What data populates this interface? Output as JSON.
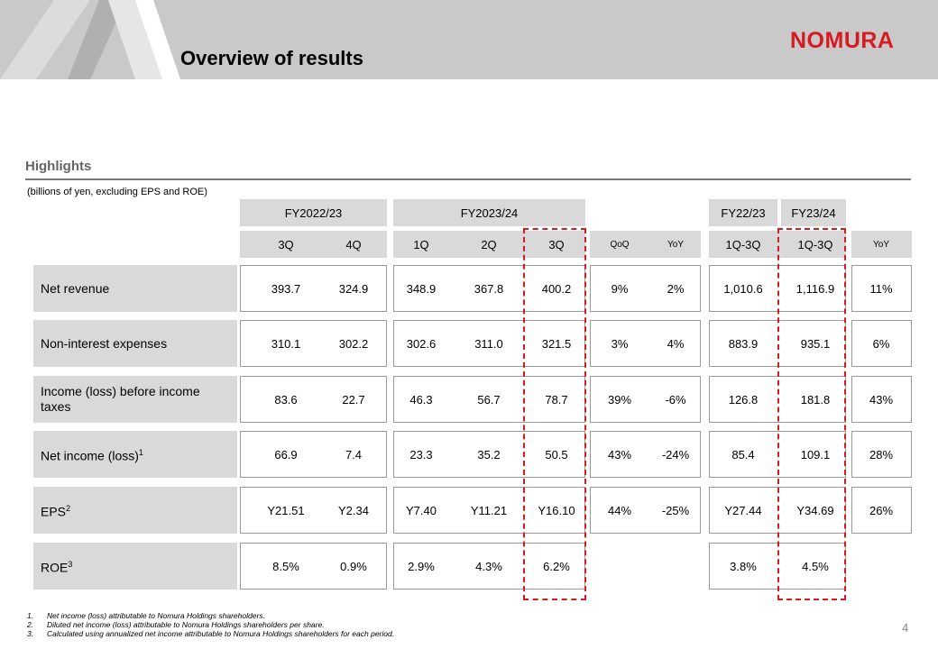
{
  "header": {
    "title": "Overview of results",
    "logo": "NOMURA"
  },
  "section_title": "Highlights",
  "unit_note": "(billions of yen, excluding EPS and ROE)",
  "table": {
    "group_headers": [
      "FY2022/23",
      "FY2023/24",
      "FY22/23",
      "FY23/24"
    ],
    "columns": [
      "3Q",
      "4Q",
      "1Q",
      "2Q",
      "3Q",
      "QoQ",
      "YoY",
      "1Q-3Q",
      "1Q-3Q",
      "YoY"
    ],
    "rows": [
      {
        "label": "Net revenue",
        "values": [
          "393.7",
          "324.9",
          "348.9",
          "367.8",
          "400.2",
          "9%",
          "2%",
          "1,010.6",
          "1,116.9",
          "11%"
        ]
      },
      {
        "label": "Non-interest expenses",
        "values": [
          "310.1",
          "302.2",
          "302.6",
          "311.0",
          "321.5",
          "3%",
          "4%",
          "883.9",
          "935.1",
          "6%"
        ]
      },
      {
        "label": "Income (loss) before income taxes",
        "values": [
          "83.6",
          "22.7",
          "46.3",
          "56.7",
          "78.7",
          "39%",
          "-6%",
          "126.8",
          "181.8",
          "43%"
        ]
      },
      {
        "label": "Net income (loss)",
        "note": "1",
        "values": [
          "66.9",
          "7.4",
          "23.3",
          "35.2",
          "50.5",
          "43%",
          "-24%",
          "85.4",
          "109.1",
          "28%"
        ]
      },
      {
        "label": "EPS",
        "note": "2",
        "values": [
          "Y21.51",
          "Y2.34",
          "Y7.40",
          "Y11.21",
          "Y16.10",
          "44%",
          "-25%",
          "Y27.44",
          "Y34.69",
          "26%"
        ]
      },
      {
        "label": "ROE",
        "note": "3",
        "values": [
          "8.5%",
          "0.9%",
          "2.9%",
          "4.3%",
          "6.2%",
          null,
          null,
          "3.8%",
          "4.5%",
          null
        ]
      }
    ]
  },
  "footnotes": [
    {
      "marker": "1.",
      "text": "Net income (loss) attributable to Nomura Holdings shareholders."
    },
    {
      "marker": "2.",
      "text": "Diluted net income (loss) attributable to Nomura Holdings shareholders per share."
    },
    {
      "marker": "3.",
      "text": "Calculated using annualized net income attributable to Nomura Holdings shareholders for each period."
    }
  ],
  "page_number": "4"
}
